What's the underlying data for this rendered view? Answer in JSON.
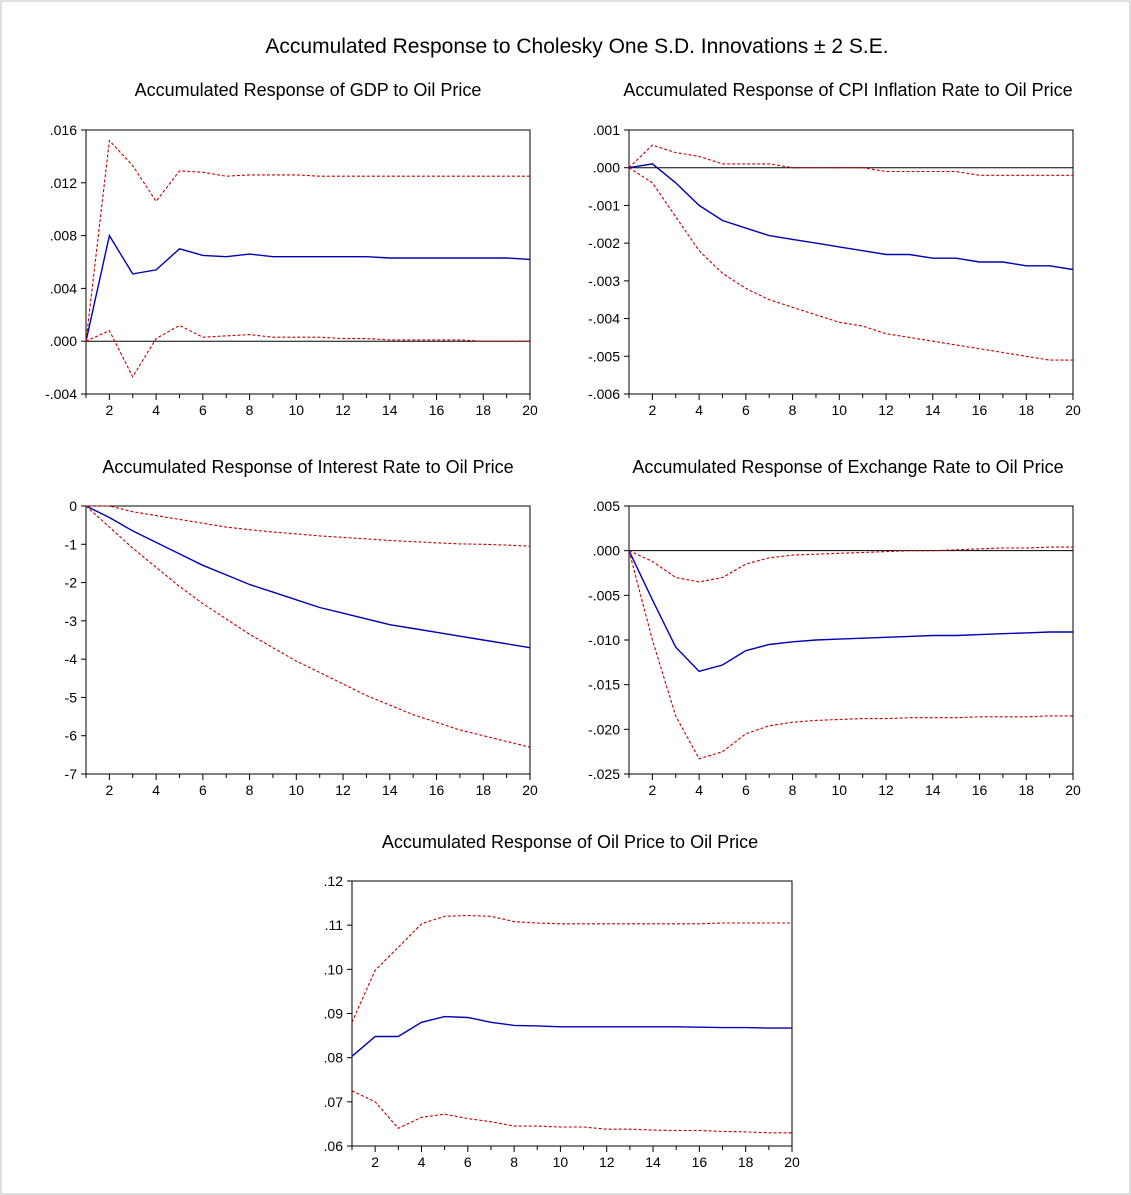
{
  "figure_title": "Accumulated Response to Cholesky One S.D. Innovations ± 2 S.E.",
  "colors": {
    "response": "#0000b4",
    "bands": "#c00000",
    "zero_line": "#000000",
    "frame": "#000000"
  },
  "chart_data": [
    {
      "type": "line",
      "title": "Accumulated Response of GDP to Oil Price",
      "xlabel": "",
      "ylabel": "",
      "x": [
        1,
        2,
        3,
        4,
        5,
        6,
        7,
        8,
        9,
        10,
        11,
        12,
        13,
        14,
        15,
        16,
        17,
        18,
        19,
        20
      ],
      "xlim": [
        1,
        20
      ],
      "xticks": [
        2,
        4,
        6,
        8,
        10,
        12,
        14,
        16,
        18,
        20
      ],
      "ylim": [
        -0.004,
        0.016
      ],
      "yticks": [
        -0.004,
        0.0,
        0.004,
        0.008,
        0.012,
        0.016
      ],
      "ytick_labels": [
        "-.004",
        ".000",
        ".004",
        ".008",
        ".012",
        ".016"
      ],
      "zero_line": true,
      "series": [
        {
          "role": "response",
          "style": "solid",
          "values": [
            0.0,
            0.008,
            0.0051,
            0.0054,
            0.007,
            0.0065,
            0.0064,
            0.0066,
            0.0064,
            0.0064,
            0.0064,
            0.0064,
            0.0064,
            0.0063,
            0.0063,
            0.0063,
            0.0063,
            0.0063,
            0.0063,
            0.0062
          ]
        },
        {
          "role": "upper",
          "style": "dashed",
          "values": [
            0.0,
            0.0152,
            0.0133,
            0.0106,
            0.0129,
            0.0128,
            0.0125,
            0.0126,
            0.0126,
            0.0126,
            0.0125,
            0.0125,
            0.0125,
            0.0125,
            0.0125,
            0.0125,
            0.0125,
            0.0125,
            0.0125,
            0.0125
          ]
        },
        {
          "role": "lower",
          "style": "dashed",
          "values": [
            0.0,
            0.0008,
            -0.0027,
            0.0002,
            0.0012,
            0.0003,
            0.0004,
            0.0005,
            0.0003,
            0.0003,
            0.0003,
            0.0002,
            0.0002,
            0.0001,
            0.0001,
            0.0001,
            0.0001,
            0.0,
            0.0,
            0.0
          ]
        }
      ]
    },
    {
      "type": "line",
      "title": "Accumulated Response of CPI Inflation Rate to Oil Price",
      "xlabel": "",
      "ylabel": "",
      "x": [
        1,
        2,
        3,
        4,
        5,
        6,
        7,
        8,
        9,
        10,
        11,
        12,
        13,
        14,
        15,
        16,
        17,
        18,
        19,
        20
      ],
      "xlim": [
        1,
        20
      ],
      "xticks": [
        2,
        4,
        6,
        8,
        10,
        12,
        14,
        16,
        18,
        20
      ],
      "ylim": [
        -0.006,
        0.001
      ],
      "yticks": [
        -0.006,
        -0.005,
        -0.004,
        -0.003,
        -0.002,
        -0.001,
        0.0,
        0.001
      ],
      "ytick_labels": [
        "-.006",
        "-.005",
        "-.004",
        "-.003",
        "-.002",
        "-.001",
        ".000",
        ".001"
      ],
      "zero_line": true,
      "series": [
        {
          "role": "response",
          "style": "solid",
          "values": [
            0.0,
            0.0001,
            -0.0004,
            -0.001,
            -0.0014,
            -0.0016,
            -0.0018,
            -0.0019,
            -0.002,
            -0.0021,
            -0.0022,
            -0.0023,
            -0.0023,
            -0.0024,
            -0.0024,
            -0.0025,
            -0.0025,
            -0.0026,
            -0.0026,
            -0.0027
          ]
        },
        {
          "role": "upper",
          "style": "dashed",
          "values": [
            0.0,
            0.0006,
            0.0004,
            0.0003,
            0.0001,
            0.0001,
            0.0001,
            0.0,
            0.0,
            0.0,
            0.0,
            -0.0001,
            -0.0001,
            -0.0001,
            -0.0001,
            -0.0002,
            -0.0002,
            -0.0002,
            -0.0002,
            -0.0002
          ]
        },
        {
          "role": "lower",
          "style": "dashed",
          "values": [
            0.0,
            -0.0004,
            -0.0013,
            -0.0022,
            -0.0028,
            -0.0032,
            -0.0035,
            -0.0037,
            -0.0039,
            -0.0041,
            -0.0042,
            -0.0044,
            -0.0045,
            -0.0046,
            -0.0047,
            -0.0048,
            -0.0049,
            -0.005,
            -0.0051,
            -0.0051
          ]
        }
      ]
    },
    {
      "type": "line",
      "title": "Accumulated Response of Interest Rate to Oil Price",
      "xlabel": "",
      "ylabel": "",
      "x": [
        1,
        2,
        3,
        4,
        5,
        6,
        7,
        8,
        9,
        10,
        11,
        12,
        13,
        14,
        15,
        16,
        17,
        18,
        19,
        20
      ],
      "xlim": [
        1,
        20
      ],
      "xticks": [
        2,
        4,
        6,
        8,
        10,
        12,
        14,
        16,
        18,
        20
      ],
      "ylim": [
        -7,
        0
      ],
      "yticks": [
        -7,
        -6,
        -5,
        -4,
        -3,
        -2,
        -1,
        0
      ],
      "ytick_labels": [
        "-7",
        "-6",
        "-5",
        "-4",
        "-3",
        "-2",
        "-1",
        "0"
      ],
      "zero_line": false,
      "series": [
        {
          "role": "response",
          "style": "solid",
          "values": [
            0.0,
            -0.3,
            -0.65,
            -0.95,
            -1.25,
            -1.55,
            -1.8,
            -2.05,
            -2.25,
            -2.45,
            -2.65,
            -2.8,
            -2.95,
            -3.1,
            -3.2,
            -3.3,
            -3.4,
            -3.5,
            -3.6,
            -3.7
          ]
        },
        {
          "role": "upper",
          "style": "dashed",
          "values": [
            0.0,
            0.0,
            -0.15,
            -0.25,
            -0.35,
            -0.45,
            -0.55,
            -0.62,
            -0.68,
            -0.73,
            -0.78,
            -0.82,
            -0.86,
            -0.9,
            -0.93,
            -0.96,
            -0.99,
            -1.0,
            -1.02,
            -1.05
          ]
        },
        {
          "role": "lower",
          "style": "dashed",
          "values": [
            0.0,
            -0.55,
            -1.1,
            -1.6,
            -2.1,
            -2.55,
            -2.95,
            -3.35,
            -3.7,
            -4.05,
            -4.35,
            -4.65,
            -4.95,
            -5.2,
            -5.45,
            -5.65,
            -5.85,
            -6.0,
            -6.15,
            -6.3
          ]
        }
      ]
    },
    {
      "type": "line",
      "title": "Accumulated Response of Exchange Rate to Oil Price",
      "xlabel": "",
      "ylabel": "",
      "x": [
        1,
        2,
        3,
        4,
        5,
        6,
        7,
        8,
        9,
        10,
        11,
        12,
        13,
        14,
        15,
        16,
        17,
        18,
        19,
        20
      ],
      "xlim": [
        1,
        20
      ],
      "xticks": [
        2,
        4,
        6,
        8,
        10,
        12,
        14,
        16,
        18,
        20
      ],
      "ylim": [
        -0.025,
        0.005
      ],
      "yticks": [
        -0.025,
        -0.02,
        -0.015,
        -0.01,
        -0.005,
        0.0,
        0.005
      ],
      "ytick_labels": [
        "-.025",
        "-.020",
        "-.015",
        "-.010",
        "-.005",
        ".000",
        ".005"
      ],
      "zero_line": true,
      "series": [
        {
          "role": "response",
          "style": "solid",
          "values": [
            0.0,
            -0.0055,
            -0.0108,
            -0.0135,
            -0.0128,
            -0.0112,
            -0.0105,
            -0.0102,
            -0.01,
            -0.0099,
            -0.0098,
            -0.0097,
            -0.0096,
            -0.0095,
            -0.0095,
            -0.0094,
            -0.0093,
            -0.0092,
            -0.0091,
            -0.0091
          ]
        },
        {
          "role": "upper",
          "style": "dashed",
          "values": [
            0.0,
            -0.0012,
            -0.003,
            -0.0035,
            -0.003,
            -0.0015,
            -0.0008,
            -0.0005,
            -0.0004,
            -0.0003,
            -0.0002,
            -0.0001,
            0.0,
            0.0,
            0.0001,
            0.0002,
            0.0003,
            0.0003,
            0.0004,
            0.0004
          ]
        },
        {
          "role": "lower",
          "style": "dashed",
          "values": [
            0.0,
            -0.01,
            -0.0185,
            -0.0233,
            -0.0225,
            -0.0205,
            -0.0196,
            -0.0192,
            -0.019,
            -0.0189,
            -0.0188,
            -0.0188,
            -0.0187,
            -0.0187,
            -0.0187,
            -0.0186,
            -0.0186,
            -0.0186,
            -0.0185,
            -0.0185
          ]
        }
      ]
    },
    {
      "type": "line",
      "title": "Accumulated Response of Oil Price to Oil Price",
      "xlabel": "",
      "ylabel": "",
      "x": [
        1,
        2,
        3,
        4,
        5,
        6,
        7,
        8,
        9,
        10,
        11,
        12,
        13,
        14,
        15,
        16,
        17,
        18,
        19,
        20
      ],
      "xlim": [
        1,
        20
      ],
      "xticks": [
        2,
        4,
        6,
        8,
        10,
        12,
        14,
        16,
        18,
        20
      ],
      "ylim": [
        0.06,
        0.12
      ],
      "yticks": [
        0.06,
        0.07,
        0.08,
        0.09,
        0.1,
        0.11,
        0.12
      ],
      "ytick_labels": [
        ".06",
        ".07",
        ".08",
        ".09",
        ".10",
        ".11",
        ".12"
      ],
      "zero_line": false,
      "series": [
        {
          "role": "response",
          "style": "solid",
          "values": [
            0.0803,
            0.0848,
            0.0848,
            0.088,
            0.0893,
            0.0891,
            0.088,
            0.0873,
            0.0872,
            0.087,
            0.087,
            0.087,
            0.087,
            0.087,
            0.087,
            0.0869,
            0.0868,
            0.0868,
            0.0867,
            0.0867
          ]
        },
        {
          "role": "upper",
          "style": "dashed",
          "values": [
            0.088,
            0.0998,
            0.105,
            0.1103,
            0.112,
            0.1122,
            0.112,
            0.1108,
            0.1105,
            0.1103,
            0.1103,
            0.1103,
            0.1103,
            0.1103,
            0.1103,
            0.1103,
            0.1105,
            0.1105,
            0.1105,
            0.1105
          ]
        },
        {
          "role": "lower",
          "style": "dashed",
          "values": [
            0.0725,
            0.07,
            0.064,
            0.0665,
            0.0672,
            0.0662,
            0.0655,
            0.0645,
            0.0645,
            0.0643,
            0.0643,
            0.0638,
            0.0638,
            0.0636,
            0.0635,
            0.0635,
            0.0633,
            0.0632,
            0.063,
            0.063
          ]
        }
      ]
    }
  ]
}
